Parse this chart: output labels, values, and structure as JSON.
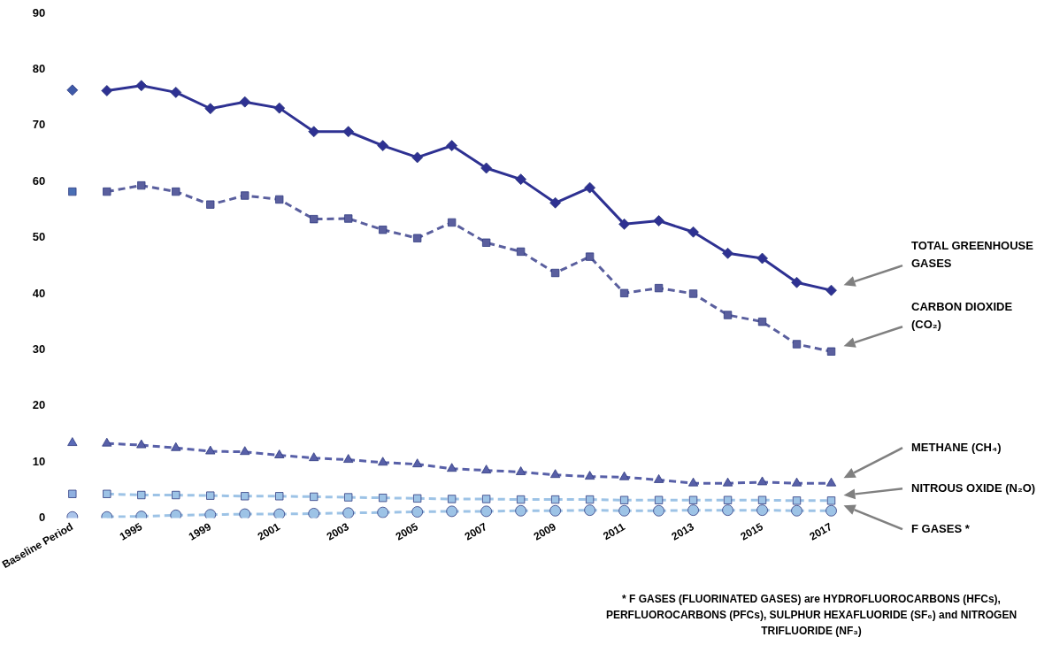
{
  "chart_data": {
    "type": "line",
    "categories": [
      "Baseline Period",
      null,
      "1995",
      null,
      "1999",
      null,
      "2001",
      null,
      "2003",
      null,
      "2005",
      null,
      "2007",
      null,
      "2009",
      null,
      "2011",
      null,
      "2013",
      null,
      "2015",
      null,
      "2017"
    ],
    "ylim": [
      0,
      90
    ],
    "yticks": [
      0,
      10,
      20,
      30,
      40,
      50,
      60,
      70,
      80,
      90
    ],
    "grid": false,
    "legend": false,
    "series": [
      {
        "type": "scatter",
        "x": [
          "Baseline Period"
        ],
        "values": [
          76.3
        ],
        "color": "#3f5aa8",
        "marker": "diamond"
      },
      {
        "type": "scatter",
        "x": [
          "Baseline Period"
        ],
        "values": [
          58.2
        ],
        "color": "#4a6fb5",
        "marker": "square"
      },
      {
        "type": "scatter",
        "x": [
          "Baseline Period"
        ],
        "values": [
          13.4
        ],
        "color": "#5a6bb8",
        "marker": "triangle"
      },
      {
        "type": "scatter",
        "x": [
          "Baseline Period"
        ],
        "values": [
          4.3
        ],
        "color": "#8fb0e0",
        "marker": "square"
      },
      {
        "type": "scatter",
        "x": [
          "Baseline Period"
        ],
        "values": [
          0.2
        ],
        "color": "#aac4ea",
        "marker": "circle"
      },
      {
        "name": "TOTAL GREENHOUSE GASES",
        "color": "#2e3192",
        "marker": "diamond",
        "line_style": "solid",
        "values": [
          null,
          76.2,
          77.1,
          75.9,
          73.0,
          74.2,
          73.1,
          68.9,
          68.9,
          66.4,
          64.3,
          66.4,
          62.4,
          60.4,
          56.2,
          58.9,
          52.4,
          53.0,
          51.0,
          47.2,
          46.3,
          42.0,
          40.6
        ]
      },
      {
        "name": "CARBON DIOXIDE (CO₂)",
        "color": "#5a5f9e",
        "marker": "square",
        "line_style": "dashed",
        "values": [
          null,
          58.2,
          59.3,
          58.2,
          55.9,
          57.5,
          56.8,
          53.3,
          53.4,
          51.4,
          49.9,
          52.7,
          49.1,
          47.5,
          43.7,
          46.6,
          40.1,
          41.0,
          40.0,
          36.2,
          35.0,
          31.0,
          29.7
        ]
      },
      {
        "name": "METHANE (CH₄)",
        "color": "#5860a8",
        "marker": "triangle",
        "line_style": "dashed",
        "values": [
          null,
          13.3,
          13.0,
          12.5,
          11.9,
          11.8,
          11.2,
          10.7,
          10.4,
          9.9,
          9.6,
          8.8,
          8.5,
          8.2,
          7.7,
          7.4,
          7.3,
          6.8,
          6.2,
          6.2,
          6.4,
          6.2,
          6.2
        ]
      },
      {
        "name": "NITROUS OXIDE (N₂O)",
        "color": "#9dc3e6",
        "marker": "square",
        "line_style": "dashed",
        "values": [
          null,
          4.3,
          4.1,
          4.1,
          4.0,
          3.9,
          3.9,
          3.8,
          3.7,
          3.6,
          3.5,
          3.4,
          3.4,
          3.3,
          3.3,
          3.3,
          3.2,
          3.2,
          3.2,
          3.2,
          3.2,
          3.1,
          3.1
        ]
      },
      {
        "name": "F GASES *",
        "color": "#9dc3e6",
        "marker": "circle",
        "line_style": "dashed",
        "values": [
          null,
          0.2,
          0.3,
          0.5,
          0.6,
          0.7,
          0.7,
          0.8,
          0.9,
          1.0,
          1.1,
          1.2,
          1.2,
          1.3,
          1.3,
          1.4,
          1.3,
          1.3,
          1.4,
          1.4,
          1.4,
          1.3,
          1.3
        ]
      }
    ],
    "annotations": [
      "* F GASES (FLUORINATED GASES) are HYDROFLUOROCARBONS (HFCs), PERFLUOROCARBONS (PFCs), SULPHUR HEXAFLUORIDE (SF₆) and NITROGEN TRIFLUORIDE (NF₃)"
    ]
  }
}
